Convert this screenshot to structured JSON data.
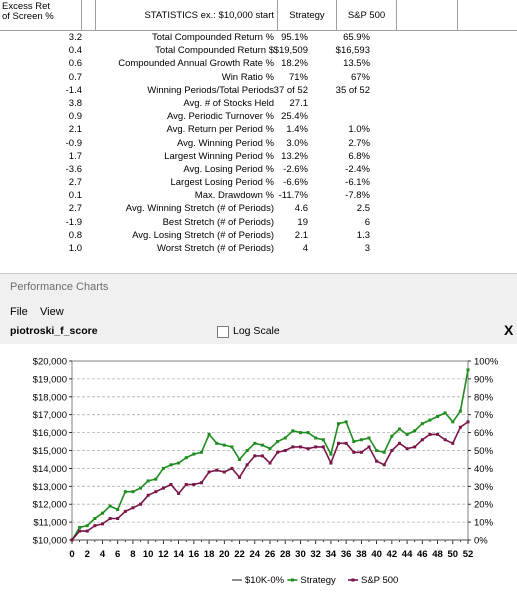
{
  "stats": {
    "header": {
      "excess_line1": "Excess Ret",
      "excess_line2": "of Screen %",
      "statistics": "STATISTICS  ex.: $10,000 start",
      "strategy": "Strategy",
      "sp500": "S&P 500"
    },
    "rows": [
      {
        "excess": "3.2",
        "label": "Total Compounded Return %",
        "strategy": "95.1%",
        "sp500": "65.9%"
      },
      {
        "excess": "0.4",
        "label": "Total Compounded Return $",
        "strategy": "$19,509",
        "sp500": "$16,593"
      },
      {
        "excess": "0.6",
        "label": "Compounded Annual Growth Rate %",
        "strategy": "18.2%",
        "sp500": "13.5%"
      },
      {
        "excess": "0.7",
        "label": "Win Ratio %",
        "strategy": "71%",
        "sp500": "67%"
      },
      {
        "excess": "-1.4",
        "label": "Winning Periods/Total Periods",
        "strategy": "37 of 52",
        "sp500": "35 of 52"
      },
      {
        "excess": "3.8",
        "label": "Avg. # of Stocks Held",
        "strategy": "27.1",
        "sp500": ""
      },
      {
        "excess": "0.9",
        "label": "Avg. Periodic Turnover %",
        "strategy": "25.4%",
        "sp500": ""
      },
      {
        "excess": "2.1",
        "label": "Avg. Return per Period %",
        "strategy": "1.4%",
        "sp500": "1.0%"
      },
      {
        "excess": "-0.9",
        "label": "Avg. Winning Period %",
        "strategy": "3.0%",
        "sp500": "2.7%"
      },
      {
        "excess": "1.7",
        "label": "Largest Winning Period %",
        "strategy": "13.2%",
        "sp500": "6.8%"
      },
      {
        "excess": "-3.6",
        "label": "Avg. Losing Period %",
        "strategy": "-2.6%",
        "sp500": "-2.4%"
      },
      {
        "excess": "2.7",
        "label": "Largest Losing Period %",
        "strategy": "-6.6%",
        "sp500": "-6.1%"
      },
      {
        "excess": "0.1",
        "label": "Max. Drawdown %",
        "strategy": "-11.7%",
        "sp500": "-7.8%"
      },
      {
        "excess": "2.7",
        "label": "Avg. Winning Stretch (# of Periods)",
        "strategy": "4.6",
        "sp500": "2.5"
      },
      {
        "excess": "-1.9",
        "label": "Best Stretch (# of Periods)",
        "strategy": "19",
        "sp500": "6"
      },
      {
        "excess": "0.8",
        "label": "Avg. Losing Stretch (# of Periods)",
        "strategy": "2.1",
        "sp500": "1.3"
      },
      {
        "excess": "1.0",
        "label": "Worst Stretch (# of Periods)",
        "strategy": "4",
        "sp500": "3"
      }
    ]
  },
  "perf": {
    "window_title": "Performance Charts",
    "menu": {
      "file": "File",
      "view": "View"
    },
    "chart_name": "piotroski_f_score",
    "log_scale_label": "Log Scale",
    "log_scale_checked": false,
    "close_symbol": "X"
  },
  "chart_data": {
    "type": "line",
    "x": [
      0,
      1,
      2,
      3,
      4,
      5,
      6,
      7,
      8,
      9,
      10,
      11,
      12,
      13,
      14,
      15,
      16,
      17,
      18,
      19,
      20,
      21,
      22,
      23,
      24,
      25,
      26,
      27,
      28,
      29,
      30,
      31,
      32,
      33,
      34,
      35,
      36,
      37,
      38,
      39,
      40,
      41,
      42,
      43,
      44,
      45,
      46,
      47,
      48,
      49,
      50,
      51,
      52
    ],
    "x_tick_labels": [
      "0",
      "2",
      "4",
      "6",
      "8",
      "10",
      "12",
      "14",
      "16",
      "18",
      "20",
      "22",
      "24",
      "26",
      "28",
      "30",
      "32",
      "34",
      "36",
      "38",
      "40",
      "42",
      "44",
      "46",
      "48",
      "50",
      "52"
    ],
    "y_left_ticks": [
      "$10,000",
      "$11,000",
      "$12,000",
      "$13,000",
      "$14,000",
      "$15,000",
      "$16,000",
      "$17,000",
      "$18,000",
      "$19,000",
      "$20,000"
    ],
    "y_right_ticks": [
      "0%",
      "10%",
      "20%",
      "30%",
      "40%",
      "50%",
      "60%",
      "70%",
      "80%",
      "90%",
      "100%"
    ],
    "ylim": [
      10000,
      20000
    ],
    "grid": true,
    "legend_placement": "bottom",
    "series": [
      {
        "name": "$10K-0%",
        "color": "#707070",
        "values": [
          10000,
          10000,
          10000,
          10000,
          10000,
          10000,
          10000,
          10000,
          10000,
          10000,
          10000,
          10000,
          10000,
          10000,
          10000,
          10000,
          10000,
          10000,
          10000,
          10000,
          10000,
          10000,
          10000,
          10000,
          10000,
          10000,
          10000,
          10000,
          10000,
          10000,
          10000,
          10000,
          10000,
          10000,
          10000,
          10000,
          10000,
          10000,
          10000,
          10000,
          10000,
          10000,
          10000,
          10000,
          10000,
          10000,
          10000,
          10000,
          10000,
          10000,
          10000,
          10000,
          10000
        ]
      },
      {
        "name": "Strategy",
        "color": "#1e8c1e",
        "values": [
          10000,
          10700,
          10800,
          11200,
          11500,
          11900,
          11700,
          12700,
          12700,
          12900,
          13300,
          13400,
          14000,
          14200,
          14300,
          14600,
          14800,
          14900,
          15900,
          15400,
          15300,
          15200,
          14500,
          15000,
          15400,
          15300,
          15100,
          15500,
          15700,
          16100,
          16000,
          16000,
          15700,
          15600,
          14800,
          16500,
          16600,
          15500,
          15600,
          15700,
          15000,
          14900,
          15800,
          16200,
          15900,
          16100,
          16500,
          16700,
          16900,
          17100,
          16600,
          17200,
          19500
        ]
      },
      {
        "name": "S&P 500",
        "color": "#7a1548",
        "values": [
          10000,
          10500,
          10500,
          10800,
          10900,
          11200,
          11200,
          11600,
          11800,
          12000,
          12500,
          12700,
          12900,
          13100,
          12600,
          13100,
          13100,
          13200,
          13800,
          13900,
          13800,
          14000,
          13500,
          14200,
          14700,
          14700,
          14300,
          14900,
          15000,
          15200,
          15200,
          15100,
          15200,
          15200,
          14300,
          15400,
          15400,
          14900,
          14900,
          15200,
          14400,
          14200,
          15000,
          15400,
          15100,
          15200,
          15600,
          15900,
          15900,
          15600,
          15400,
          16300,
          16600
        ]
      }
    ]
  }
}
